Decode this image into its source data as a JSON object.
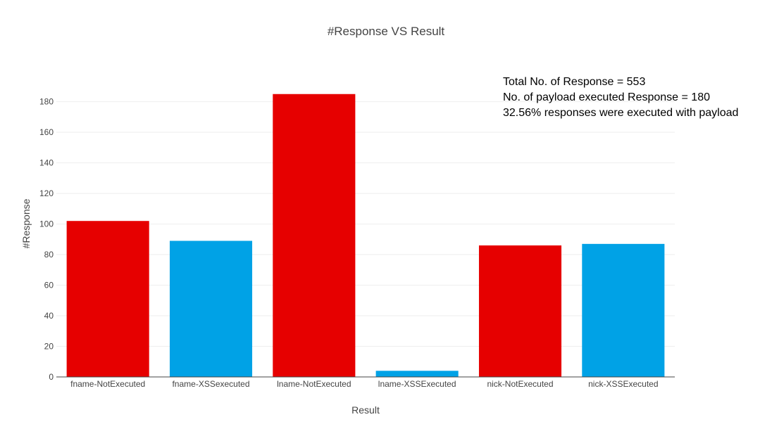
{
  "chart_data": {
    "type": "bar",
    "title": "#Response VS  Result",
    "xlabel": "Result",
    "ylabel": "#Response",
    "categories": [
      "fname-NotExecuted",
      "fname-XSSexecuted",
      "lname-NotExecuted",
      "lname-XSSExecuted",
      "nick-NotExecuted",
      "nick-XSSExecuted"
    ],
    "values": [
      102,
      89,
      185,
      4,
      86,
      87
    ],
    "bar_colors": [
      "#e60000",
      "#00a2e6",
      "#e60000",
      "#00a2e6",
      "#e60000",
      "#00a2e6"
    ],
    "ylim": [
      0,
      195
    ],
    "yticks": [
      0,
      20,
      40,
      60,
      80,
      100,
      120,
      140,
      160,
      180
    ],
    "grid": true,
    "legend": false,
    "annotations": [
      "Total No. of Response = 553",
      "No. of payload executed Response = 180",
      "32.56% responses were executed with payload"
    ]
  }
}
